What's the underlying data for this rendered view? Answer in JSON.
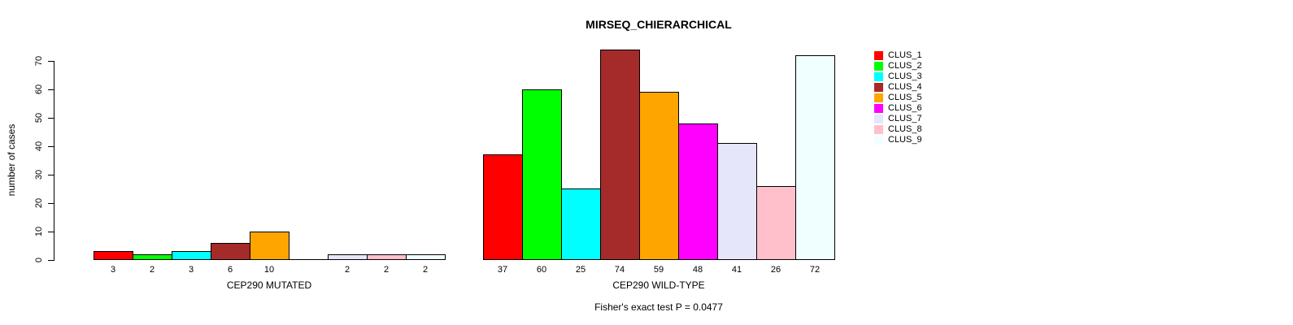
{
  "title": "MIRSEQ_CHIERARCHICAL",
  "annotation": "Fisher's exact test P = 0.0477",
  "chart_data": {
    "type": "grouped_bar",
    "title": "MIRSEQ_CHIERARCHICAL",
    "ylabel": "number of cases",
    "ylim": [
      0,
      70
    ],
    "yticks": [
      0,
      10,
      20,
      30,
      40,
      50,
      60,
      70
    ],
    "grid": false,
    "legend_position": "right",
    "annotation": "Fisher's exact test P = 0.0477",
    "clusters": [
      {
        "name": "CLUS_1",
        "color": "#FF0000"
      },
      {
        "name": "CLUS_2",
        "color": "#00FF00"
      },
      {
        "name": "CLUS_3",
        "color": "#00FFFF"
      },
      {
        "name": "CLUS_4",
        "color": "#A52A2A"
      },
      {
        "name": "CLUS_5",
        "color": "#FFA500"
      },
      {
        "name": "CLUS_6",
        "color": "#FF00FF"
      },
      {
        "name": "CLUS_7",
        "color": "#E6E6FA"
      },
      {
        "name": "CLUS_8",
        "color": "#FFC0CB"
      },
      {
        "name": "CLUS_9",
        "color": "#F0FFFF"
      }
    ],
    "groups": [
      {
        "label": "CEP290 MUTATED",
        "values": [
          3,
          2,
          3,
          6,
          10,
          0,
          2,
          2,
          2
        ],
        "bar_labels": [
          "3",
          "2",
          "3",
          "6",
          "10",
          "",
          "2",
          "2",
          "2"
        ]
      },
      {
        "label": "CEP290 WILD-TYPE",
        "values": [
          37,
          60,
          25,
          74,
          59,
          48,
          41,
          26,
          72
        ],
        "bar_labels": [
          "37",
          "60",
          "25",
          "74",
          "59",
          "48",
          "41",
          "26",
          "72"
        ]
      }
    ]
  }
}
